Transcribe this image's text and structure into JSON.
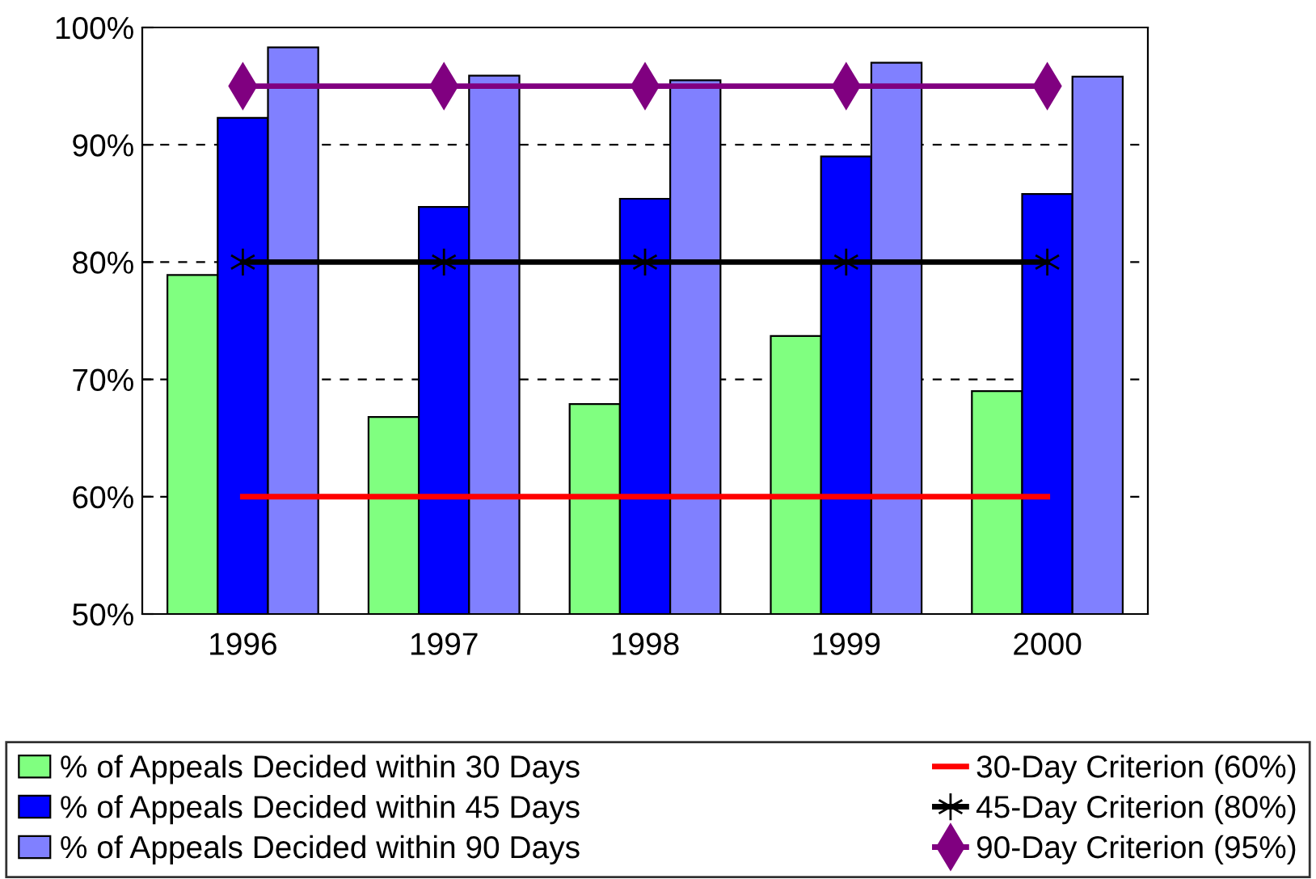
{
  "chart_data": {
    "type": "bar",
    "categories": [
      "1996",
      "1997",
      "1998",
      "1999",
      "2000"
    ],
    "series": [
      {
        "name": "% of Appeals Decided within 30 Days",
        "color": "#80ff80",
        "values": [
          78.9,
          66.8,
          67.9,
          73.7,
          69.0
        ]
      },
      {
        "name": "% of Appeals Decided within 45 Days",
        "color": "#0000ff",
        "values": [
          92.3,
          84.7,
          85.4,
          89.0,
          85.8
        ]
      },
      {
        "name": "% of Appeals Decided within 90 Days",
        "color": "#8080ff",
        "values": [
          98.3,
          95.9,
          95.5,
          97.0,
          95.8
        ]
      },
      {
        "name": "30-Day Criterion (60%)",
        "type": "line",
        "color": "#ff0000",
        "marker": "none",
        "values": [
          60,
          60,
          60,
          60,
          60
        ]
      },
      {
        "name": "45-Day Criterion (80%)",
        "type": "line",
        "color": "#000000",
        "marker": "cross",
        "values": [
          80,
          80,
          80,
          80,
          80
        ]
      },
      {
        "name": "90-Day Criterion (95%)",
        "type": "line",
        "color": "#800080",
        "marker": "diamond",
        "values": [
          95,
          95,
          95,
          95,
          95
        ]
      }
    ],
    "ylim": [
      50,
      100
    ],
    "yticks": [
      {
        "value": 50,
        "label": "50%"
      },
      {
        "value": 60,
        "label": "60%"
      },
      {
        "value": 70,
        "label": "70%"
      },
      {
        "value": 80,
        "label": "80%"
      },
      {
        "value": 90,
        "label": "90%"
      },
      {
        "value": 100,
        "label": "100%"
      }
    ],
    "grid": "y",
    "legend": "bottom"
  }
}
